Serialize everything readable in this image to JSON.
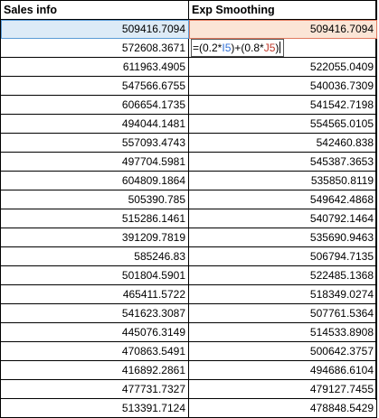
{
  "headers": {
    "col1": "Sales info",
    "col2": "Exp Smoothing"
  },
  "formula": {
    "prefix": "=(0.2*",
    "ref1": "I5",
    "middle": ")+(0.8*",
    "ref2": "J5",
    "suffix": ")"
  },
  "rows": [
    {
      "sales": "509416.7094",
      "smooth": "509416.7094"
    },
    {
      "sales": "572608.3671",
      "smooth": ""
    },
    {
      "sales": "611963.4905",
      "smooth": "522055.0409"
    },
    {
      "sales": "547566.6755",
      "smooth": "540036.7309"
    },
    {
      "sales": "606654.1735",
      "smooth": "541542.7198"
    },
    {
      "sales": "494044.1481",
      "smooth": "554565.0105"
    },
    {
      "sales": "557093.4743",
      "smooth": "542460.838"
    },
    {
      "sales": "497704.5981",
      "smooth": "545387.3653"
    },
    {
      "sales": "604809.1864",
      "smooth": "535850.8119"
    },
    {
      "sales": "505390.785",
      "smooth": "549642.4868"
    },
    {
      "sales": "515286.1461",
      "smooth": "540792.1464"
    },
    {
      "sales": "391209.7819",
      "smooth": "535690.9463"
    },
    {
      "sales": "585246.83",
      "smooth": "506794.7135"
    },
    {
      "sales": "501804.5901",
      "smooth": "522485.1368"
    },
    {
      "sales": "465411.5722",
      "smooth": "518349.0274"
    },
    {
      "sales": "541623.3087",
      "smooth": "507761.5364"
    },
    {
      "sales": "445076.3149",
      "smooth": "514533.8908"
    },
    {
      "sales": "470863.5491",
      "smooth": "500642.3757"
    },
    {
      "sales": "416892.2861",
      "smooth": "494686.6104"
    },
    {
      "sales": "477731.7327",
      "smooth": "479127.7455"
    },
    {
      "sales": "513391.7124",
      "smooth": "478848.5429"
    }
  ],
  "colors": {
    "ref1_highlight": "#ddebf7",
    "ref2_highlight": "#fbe5d6",
    "ref1_text": "#2f6fd6",
    "ref2_text": "#c0392b"
  }
}
